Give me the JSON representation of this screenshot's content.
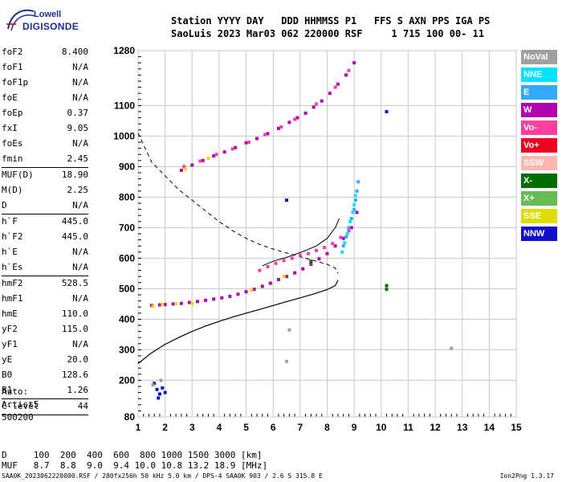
{
  "logo": {
    "top": "Lowell",
    "bottom": "DIGISONDE"
  },
  "header": {
    "line1": "Station YYYY DAY   DDD HHMMSS P1   FFS S AXN PPS IGA PS",
    "line2": "SaoLuis 2023 Mar03 062 220000 RSF     1 715 100 00- 11"
  },
  "params": [
    {
      "name": "foF2",
      "value": "8.400"
    },
    {
      "name": "foF1",
      "value": "N/A"
    },
    {
      "name": "foF1p",
      "value": "N/A"
    },
    {
      "name": "foE",
      "value": "N/A"
    },
    {
      "name": "foEp",
      "value": "0.37"
    },
    {
      "name": "fxI",
      "value": "9.05"
    },
    {
      "name": "foEs",
      "value": "N/A"
    },
    {
      "name": "fmin",
      "value": "2.45",
      "sep_after": true
    },
    {
      "name": "MUF(D)",
      "value": "18.90"
    },
    {
      "name": "M(D)",
      "value": "2.25"
    },
    {
      "name": "D",
      "value": "N/A",
      "sep_after": true
    },
    {
      "name": "h`F",
      "value": "445.0"
    },
    {
      "name": "h`F2",
      "value": "445.0"
    },
    {
      "name": "h`E",
      "value": "N/A"
    },
    {
      "name": "h`Es",
      "value": "N/A",
      "sep_after": true
    },
    {
      "name": "hmF2",
      "value": "528.5"
    },
    {
      "name": "hmF1",
      "value": "N/A"
    },
    {
      "name": "hmE",
      "value": "110.0"
    },
    {
      "name": "yF2",
      "value": "115.0"
    },
    {
      "name": "yF1",
      "value": "N/A"
    },
    {
      "name": "yE",
      "value": "20.0"
    },
    {
      "name": "B0",
      "value": "128.6"
    },
    {
      "name": "B1",
      "value": "1.26",
      "sep_after": true
    },
    {
      "name": "C-level",
      "value": "44",
      "sep_after": true
    }
  ],
  "auto": {
    "label": "Auto:",
    "artist": "Artist5",
    "code": "500200"
  },
  "muf_table": {
    "line1": "D     100  200  400  600  800 1000 1500 3000 [km]",
    "line2": "MUF   8.7  8.8  9.0  9.4 10.0 10.8 13.2 18.9 [MHz]"
  },
  "footer": {
    "left": "SAA0K_2023062220000.RSF / 280fx256h 50 kHz 5.0 km / DPS-4 SAA0K 903 / 2.6 S 315.8 E",
    "right": "Ion2Png 1.3.17"
  },
  "legend": [
    {
      "label": "NoVal",
      "bg": "#a0a0a0",
      "fg": "#ffffff"
    },
    {
      "label": "NNE",
      "bg": "#00e5ff",
      "fg": "#ffffff"
    },
    {
      "label": "E",
      "bg": "#33aaff",
      "fg": "#ffffff"
    },
    {
      "label": "W",
      "bg": "#b000b0",
      "fg": "#ffffff"
    },
    {
      "label": "Vo-",
      "bg": "#ff3fa0",
      "fg": "#ffffff"
    },
    {
      "label": "Vo+",
      "bg": "#ee0022",
      "fg": "#ffffff"
    },
    {
      "label": "SSW",
      "bg": "#ffb6b0",
      "fg": "#ffffff"
    },
    {
      "label": "X-",
      "bg": "#006e00",
      "fg": "#ffffff"
    },
    {
      "label": "X+",
      "bg": "#66bb55",
      "fg": "#ffffff"
    },
    {
      "label": "SSE",
      "bg": "#dddd00",
      "fg": "#ffffff"
    },
    {
      "label": "NNW",
      "bg": "#1010cc",
      "fg": "#ffffff"
    }
  ],
  "chart_data": {
    "type": "scatter",
    "xlim": [
      1,
      15
    ],
    "ylim": [
      80,
      1280
    ],
    "x_ticks": [
      1,
      2,
      3,
      4,
      5,
      6,
      7,
      8,
      9,
      10,
      11,
      12,
      13,
      14,
      15
    ],
    "y_ticks": [
      80,
      200,
      300,
      400,
      500,
      600,
      700,
      800,
      900,
      1000,
      1100,
      1280
    ],
    "grid": true,
    "series": [
      {
        "color": "#b000b0",
        "points": [
          [
            1.5,
            445
          ],
          [
            1.8,
            447
          ],
          [
            2.0,
            448
          ],
          [
            2.3,
            450
          ],
          [
            2.6,
            452
          ],
          [
            2.9,
            455
          ],
          [
            3.2,
            458
          ],
          [
            3.5,
            462
          ],
          [
            3.8,
            466
          ],
          [
            4.1,
            470
          ],
          [
            4.4,
            475
          ],
          [
            4.7,
            482
          ],
          [
            5.0,
            490
          ],
          [
            5.3,
            498
          ],
          [
            5.6,
            508
          ],
          [
            5.9,
            518
          ],
          [
            6.2,
            530
          ],
          [
            6.5,
            540
          ],
          [
            6.8,
            552
          ],
          [
            7.1,
            565
          ],
          [
            7.4,
            580
          ],
          [
            7.7,
            598
          ],
          [
            8.0,
            615
          ],
          [
            8.3,
            640
          ],
          [
            8.6,
            665
          ],
          [
            8.9,
            700
          ],
          [
            9.1,
            750
          ]
        ]
      },
      {
        "color": "#ff3fa0",
        "points": [
          [
            5.5,
            560
          ],
          [
            5.8,
            572
          ],
          [
            6.1,
            583
          ],
          [
            6.4,
            592
          ],
          [
            6.7,
            600
          ],
          [
            7.0,
            610
          ],
          [
            7.3,
            615
          ],
          [
            7.6,
            625
          ],
          [
            7.9,
            635
          ],
          [
            8.2,
            648
          ],
          [
            8.5,
            668
          ],
          [
            8.8,
            690
          ]
        ]
      },
      {
        "color": "#33aaff",
        "points": [
          [
            8.6,
            640
          ],
          [
            8.7,
            670
          ],
          [
            8.8,
            700
          ],
          [
            8.9,
            730
          ],
          [
            9.0,
            760
          ],
          [
            9.05,
            790
          ],
          [
            9.1,
            820
          ],
          [
            9.15,
            850
          ]
        ]
      },
      {
        "color": "#00e5ff",
        "points": [
          [
            8.55,
            620
          ],
          [
            8.65,
            650
          ],
          [
            8.75,
            680
          ],
          [
            8.85,
            720
          ],
          [
            8.95,
            750
          ],
          [
            9.0,
            775
          ],
          [
            9.05,
            805
          ]
        ]
      },
      {
        "color": "#b000b0",
        "points": [
          [
            2.6,
            888
          ],
          [
            3.0,
            905
          ],
          [
            3.4,
            920
          ],
          [
            3.8,
            935
          ],
          [
            4.2,
            948
          ],
          [
            4.6,
            962
          ],
          [
            5.0,
            978
          ],
          [
            5.4,
            992
          ],
          [
            5.8,
            1008
          ],
          [
            6.2,
            1025
          ],
          [
            6.6,
            1045
          ],
          [
            6.9,
            1060
          ],
          [
            7.2,
            1075
          ],
          [
            7.5,
            1095
          ],
          [
            7.8,
            1115
          ],
          [
            8.1,
            1140
          ],
          [
            8.4,
            1170
          ],
          [
            8.7,
            1200
          ],
          [
            9.0,
            1240
          ]
        ]
      },
      {
        "color": "#ff3fa0",
        "points": [
          [
            2.7,
            900
          ],
          [
            3.3,
            918
          ],
          [
            3.9,
            940
          ],
          [
            4.5,
            958
          ],
          [
            5.1,
            980
          ],
          [
            5.7,
            1005
          ],
          [
            6.3,
            1030
          ],
          [
            6.8,
            1055
          ],
          [
            7.6,
            1105
          ],
          [
            8.3,
            1160
          ],
          [
            8.8,
            1215
          ]
        ]
      },
      {
        "color": "#dddd00",
        "points": [
          [
            1.55,
            442
          ],
          [
            1.9,
            449
          ],
          [
            2.4,
            451
          ],
          [
            3.0,
            452
          ],
          [
            5.2,
            495
          ],
          [
            6.4,
            540
          ],
          [
            2.75,
            892
          ],
          [
            3.6,
            927
          ]
        ]
      },
      {
        "color": "#006e00",
        "points": [
          [
            7.4,
            590
          ],
          [
            10.2,
            498
          ],
          [
            10.2,
            510
          ]
        ]
      },
      {
        "color": "#1010cc",
        "points": [
          [
            1.6,
            190
          ],
          [
            1.7,
            170
          ],
          [
            1.8,
            155
          ],
          [
            1.9,
            175
          ],
          [
            1.75,
            142
          ],
          [
            2.0,
            160
          ],
          [
            6.5,
            790
          ],
          [
            10.2,
            1080
          ]
        ]
      },
      {
        "color": "#a0a0a0",
        "points": [
          [
            1.55,
            185
          ],
          [
            1.85,
            200
          ],
          [
            12.6,
            305
          ],
          [
            6.6,
            365
          ],
          [
            6.5,
            262
          ]
        ]
      }
    ],
    "profile_curve": [
      [
        1.0,
        255
      ],
      [
        1.5,
        290
      ],
      [
        2.0,
        318
      ],
      [
        2.5,
        340
      ],
      [
        3.0,
        360
      ],
      [
        3.5,
        378
      ],
      [
        4.0,
        393
      ],
      [
        4.5,
        407
      ],
      [
        5.0,
        420
      ],
      [
        5.5,
        432
      ],
      [
        6.0,
        445
      ],
      [
        6.5,
        458
      ],
      [
        7.0,
        470
      ],
      [
        7.5,
        483
      ],
      [
        8.0,
        497
      ],
      [
        8.3,
        510
      ],
      [
        8.4,
        528.5
      ]
    ],
    "extra_trace": [
      [
        5.6,
        575
      ],
      [
        6.0,
        590
      ],
      [
        6.4,
        600
      ],
      [
        6.8,
        612
      ],
      [
        7.2,
        625
      ],
      [
        7.6,
        640
      ],
      [
        8.0,
        665
      ],
      [
        8.3,
        700
      ],
      [
        8.45,
        730
      ]
    ],
    "dashed_curve": [
      [
        1.0,
        1010
      ],
      [
        1.5,
        915
      ],
      [
        2.0,
        870
      ],
      [
        2.5,
        825
      ],
      [
        3.0,
        790
      ],
      [
        3.5,
        755
      ],
      [
        4.0,
        720
      ],
      [
        4.5,
        690
      ],
      [
        5.0,
        665
      ],
      [
        5.5,
        645
      ],
      [
        6.0,
        630
      ],
      [
        6.5,
        617
      ],
      [
        7.0,
        605
      ],
      [
        7.5,
        592
      ],
      [
        8.0,
        580
      ],
      [
        8.3,
        568
      ],
      [
        8.4,
        550
      ]
    ]
  }
}
